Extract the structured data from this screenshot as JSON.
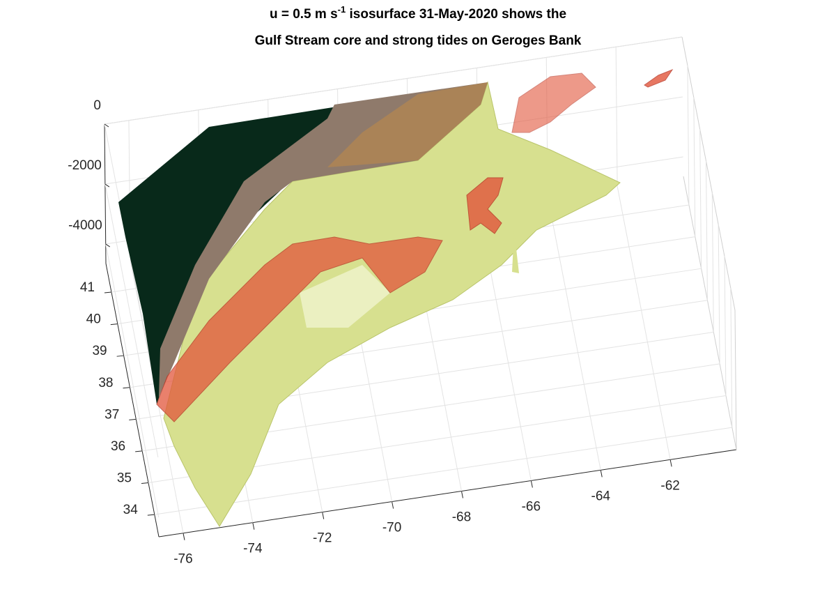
{
  "chart_data": {
    "type": "surface3d",
    "title": {
      "before": "u = 0.5 m s",
      "superscript": "-1",
      "after": " isosurface 31-May-2020 shows the",
      "line2": "Gulf Stream core and strong tides on Geroges Bank"
    },
    "xlim": [
      -76.7,
      -60.1
    ],
    "xticks": [
      -76,
      -74,
      -72,
      -70,
      -68,
      -66,
      -64,
      -62
    ],
    "ylim": [
      33.3,
      41.9
    ],
    "yticks": [
      34,
      35,
      36,
      37,
      38,
      39,
      40,
      41
    ],
    "zlim": [
      -4650,
      0
    ],
    "zticks": [
      -4000,
      -2000,
      0
    ],
    "grid": true
  }
}
